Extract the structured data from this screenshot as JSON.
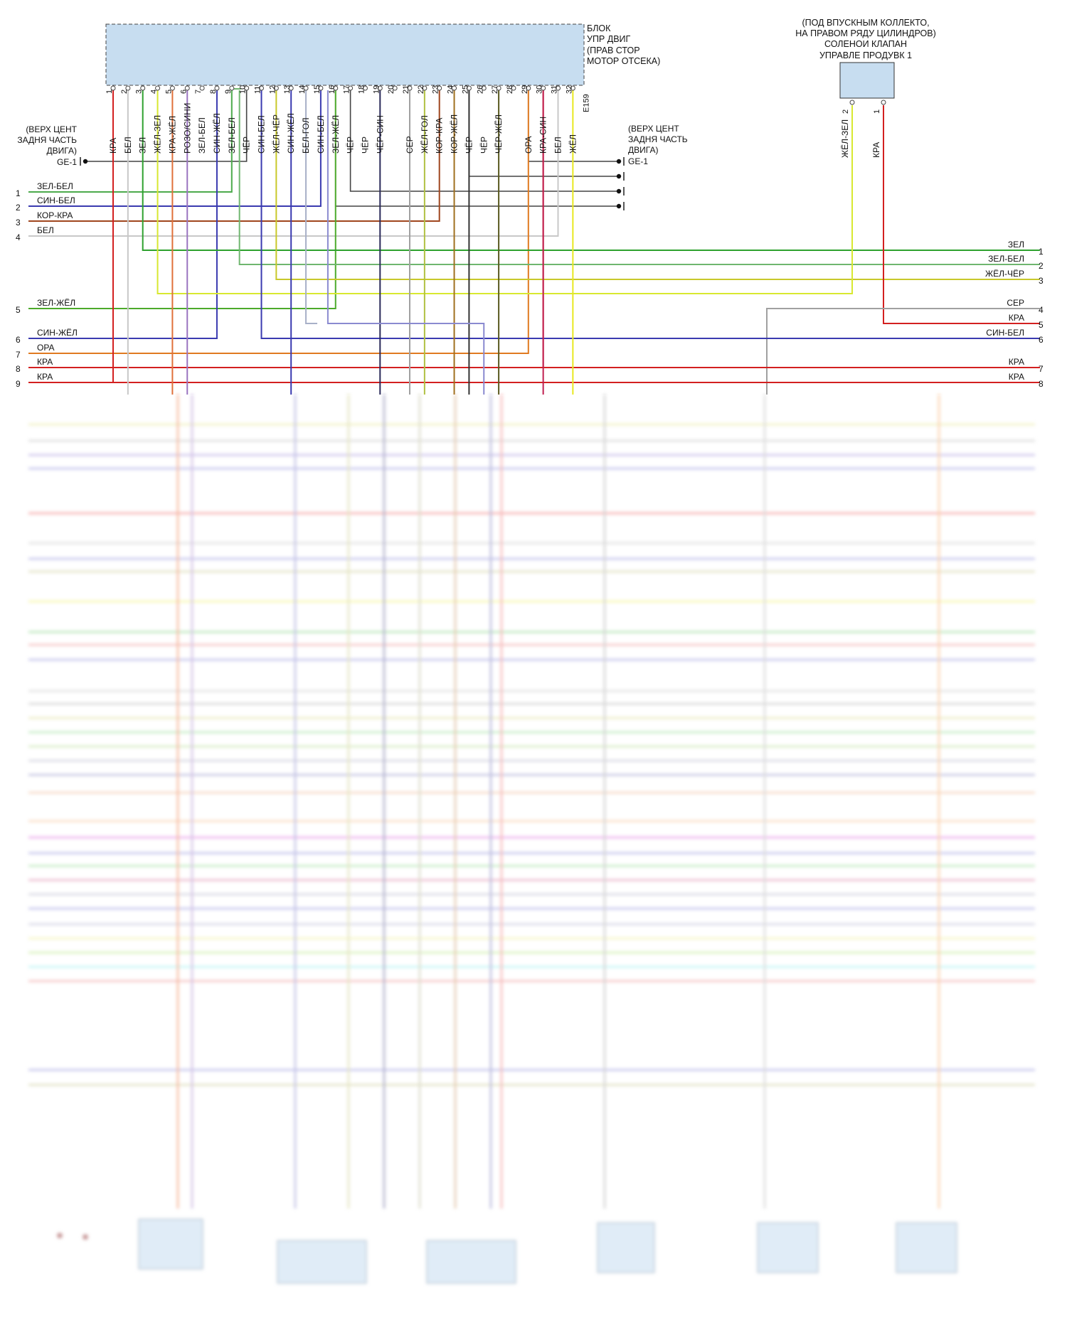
{
  "ecu": {
    "title_lines": [
      "БЛОК",
      "УПР ДВИГ",
      "(ПРАВ СТОР",
      "МОТОР ОТСЕКА)"
    ],
    "connector": "E159",
    "pins": [
      {
        "n": "1",
        "wire": "КРА",
        "color": "#d32020"
      },
      {
        "n": "2",
        "wire": "БЕЛ",
        "color": "#c8c8c8"
      },
      {
        "n": "3",
        "wire": "ЗЕЛ",
        "color": "#2ea12e"
      },
      {
        "n": "4",
        "wire": "ЖЁЛ-ЗЕЛ",
        "color": "#a8c83a"
      },
      {
        "n": "5",
        "wire": "КРА-ЖЁЛ",
        "color": "#e0703a"
      },
      {
        "n": "6",
        "wire": "РОЗО/СИНИ",
        "color": "#9a74c0"
      },
      {
        "n": "7",
        "wire": "ЗЕЛ-БЕЛ",
        "color": "#6fb66f"
      },
      {
        "n": "8",
        "wire": "СИН-ЖЁЛ",
        "color": "#3a3ab0"
      },
      {
        "n": "9",
        "wire": "ЗЕЛ-БЕЛ",
        "color": "#6fb66f"
      },
      {
        "n": "10",
        "wire": "ЧЁР",
        "color": "#333333"
      },
      {
        "n": "11",
        "wire": "СИН-БЕЛ",
        "color": "#3a3ab0"
      },
      {
        "n": "12",
        "wire": "ЖЁЛ-ЧЁР",
        "color": "#c8c82a"
      },
      {
        "n": "13",
        "wire": "СИН-ЖЁЛ",
        "color": "#3a3ab0"
      },
      {
        "n": "14",
        "wire": "БЕЛ-ГОЛ",
        "color": "#a8b0c8"
      },
      {
        "n": "15",
        "wire": "СИН-БЕЛ",
        "color": "#5a5ac0"
      },
      {
        "n": "16",
        "wire": "ЗЕЛ-ЖЁЛ",
        "color": "#4caa2a"
      },
      {
        "n": "17",
        "wire": "ЧЁР",
        "color": "#333333"
      },
      {
        "n": "18",
        "wire": "ЧЁР",
        "color": "#333333"
      },
      {
        "n": "19",
        "wire": "ЧЁР-СИН",
        "color": "#2a2a5a"
      },
      {
        "n": "20",
        "wire": "",
        "color": "#999999"
      },
      {
        "n": "21",
        "wire": "СЕР",
        "color": "#a0a0a0"
      },
      {
        "n": "22",
        "wire": "ЖЁЛ-ГОЛ",
        "color": "#b0c040"
      },
      {
        "n": "23",
        "wire": "КОР-КРА",
        "color": "#a0461e"
      },
      {
        "n": "24",
        "wire": "КОР-ЖЁЛ",
        "color": "#a0701e"
      },
      {
        "n": "25",
        "wire": "ЧЁР",
        "color": "#333333"
      },
      {
        "n": "26",
        "wire": "ЧЁР",
        "color": "#333333"
      },
      {
        "n": "27",
        "wire": "ЧЁР-ЖЁЛ",
        "color": "#5a5a20"
      },
      {
        "n": "28",
        "wire": "",
        "color": "#999999"
      },
      {
        "n": "29",
        "wire": "ОРА",
        "color": "#e07a20"
      },
      {
        "n": "30",
        "wire": "КРА-СИН",
        "color": "#c02050"
      },
      {
        "n": "31",
        "wire": "БЕЛ",
        "color": "#c8c8c8"
      },
      {
        "n": "32",
        "wire": "ЖЁЛ",
        "color": "#e8e820"
      }
    ]
  },
  "ground_left": {
    "label_lines": [
      "(ВЕРХ ЦЕНТ",
      "ЗАДНЯ ЧАСТЬ",
      "ДВИГА)"
    ],
    "connector": "GE-1"
  },
  "ground_right": {
    "label_lines": [
      "(ВЕРХ ЦЕНТ",
      "ЗАДНЯ ЧАСТЬ",
      "ДВИГА)"
    ],
    "connector": "GE-1"
  },
  "solenoid": {
    "title_lines": [
      "(ПОД ВПУСКНЫМ КОЛЛЕКТО,",
      "НА ПРАВОМ РЯДУ ЦИЛИНДРОВ)",
      "СОЛЕНОИ КЛАПАН",
      "УПРАВЛЕ ПРОДУВК 1"
    ],
    "pins": [
      {
        "n": "2",
        "wire": "ЖЁЛ-ЗЕЛ",
        "color": "#d8e830"
      },
      {
        "n": "1",
        "wire": "КРА",
        "color": "#d32020"
      }
    ]
  },
  "left_lines": [
    {
      "n": "1",
      "label": "ЗЕЛ-БЕЛ",
      "color": "#4caa4c"
    },
    {
      "n": "2",
      "label": "СИН-БЕЛ",
      "color": "#3a3ab0"
    },
    {
      "n": "3",
      "label": "КОР-КРА",
      "color": "#a0461e"
    },
    {
      "n": "4",
      "label": "БЕЛ",
      "color": "#c8c8c8"
    },
    {
      "n": "5",
      "label": "ЗЕЛ-ЖЁЛ",
      "color": "#4caa2a"
    },
    {
      "n": "6",
      "label": "СИН-ЖЁЛ",
      "color": "#3a3ab0"
    },
    {
      "n": "7",
      "label": "ОРА",
      "color": "#e07a20"
    },
    {
      "n": "8",
      "label": "КРА",
      "color": "#d32020"
    },
    {
      "n": "9",
      "label": "КРА",
      "color": "#d32020"
    }
  ],
  "right_lines": [
    {
      "n": "1",
      "label": "ЗЕЛ",
      "color": "#2ea12e"
    },
    {
      "n": "2",
      "label": "ЗЕЛ-БЕЛ",
      "color": "#6fb66f"
    },
    {
      "n": "3",
      "label": "ЖЁЛ-ЧЁР",
      "color": "#c8c82a"
    },
    {
      "n": "4",
      "label": "СЕР",
      "color": "#a0a0a0"
    },
    {
      "n": "5",
      "label": "КРА",
      "color": "#d32020"
    },
    {
      "n": "6",
      "label": "СИН-БЕЛ",
      "color": "#3a3ab0"
    },
    {
      "n": "7",
      "label": "КРА",
      "color": "#d32020"
    },
    {
      "n": "8",
      "label": "КРА",
      "color": "#d32020"
    }
  ],
  "colors": {
    "box_fill": "#c7ddf0",
    "box_stroke": "#333333"
  }
}
